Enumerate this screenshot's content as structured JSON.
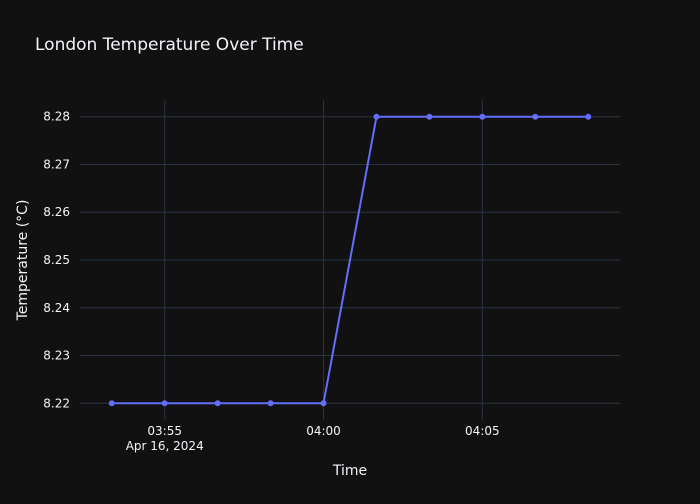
{
  "chart_data": {
    "type": "line",
    "title": "London Temperature Over Time",
    "xlabel": "Time",
    "ylabel": "Temperature (°C)",
    "x": [
      "2024-04-16 03:53:20",
      "2024-04-16 03:55:00",
      "2024-04-16 03:56:40",
      "2024-04-16 03:58:20",
      "2024-04-16 04:00:00",
      "2024-04-16 04:01:40",
      "2024-04-16 04:03:20",
      "2024-04-16 04:05:00",
      "2024-04-16 04:06:40",
      "2024-04-16 04:08:20"
    ],
    "series": [
      {
        "values": [
          8.22,
          8.22,
          8.22,
          8.22,
          8.22,
          8.28,
          8.28,
          8.28,
          8.28,
          8.28
        ]
      }
    ],
    "x_ticks": [
      {
        "value": "2024-04-16 03:55:00",
        "label": "03:55",
        "sublabel": "Apr 16, 2024"
      },
      {
        "value": "2024-04-16 04:00:00",
        "label": "04:00"
      },
      {
        "value": "2024-04-16 04:05:00",
        "label": "04:05"
      }
    ],
    "y_ticks": [
      "8.22",
      "8.23",
      "8.24",
      "8.25",
      "8.26",
      "8.27",
      "8.28"
    ],
    "xlim": [
      "2024-04-16 03:52:20",
      "2024-04-16 04:09:20"
    ],
    "ylim": [
      8.2165,
      8.2835
    ],
    "grid": true,
    "legend": "none",
    "colors": {
      "background": "#111111",
      "grid": "#283442",
      "line": "#636efa",
      "text": "#f2f5fa"
    }
  }
}
